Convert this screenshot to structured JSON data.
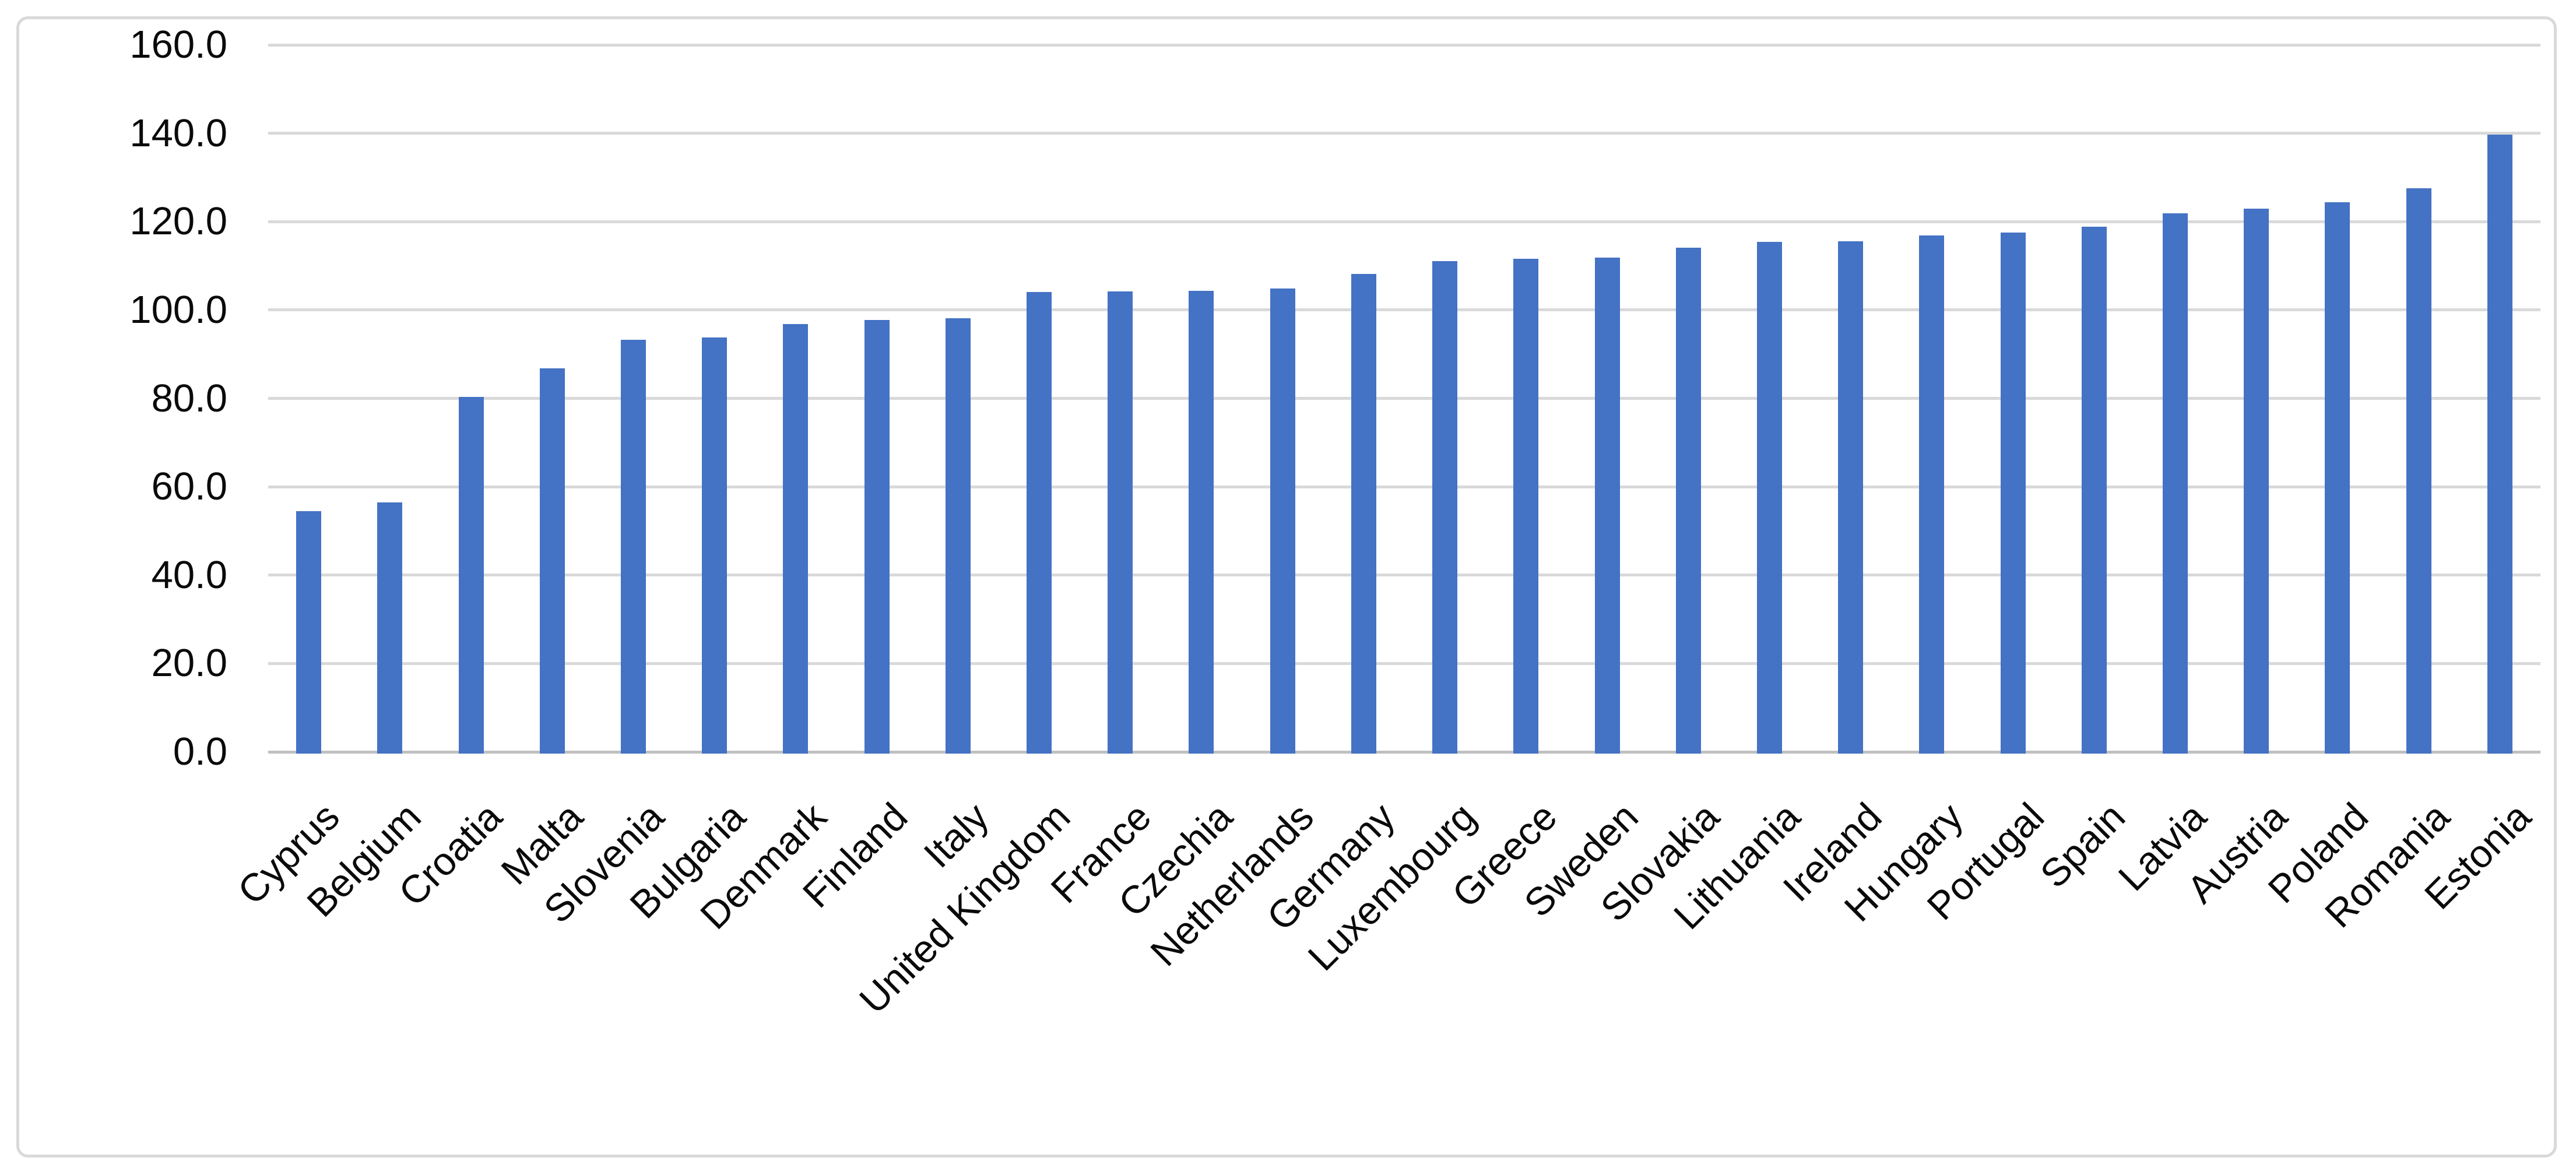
{
  "chart_data": {
    "type": "bar",
    "title": "",
    "xlabel": "",
    "ylabel": "",
    "categories": [
      "Cyprus",
      "Belgium",
      "Croatia",
      "Malta",
      "Slovenia",
      "Bulgaria",
      "Denmark",
      "Finland",
      "Italy",
      "United Kingdom",
      "France",
      "Czechia",
      "Netherlands",
      "Germany",
      "Luxembourg",
      "Greece",
      "Sweden",
      "Slovakia",
      "Lithuania",
      "Ireland",
      "Hungary",
      "Portugal",
      "Spain",
      "Latvia",
      "Austria",
      "Poland",
      "Romania",
      "Estonia"
    ],
    "values": [
      54.5,
      56.4,
      80.3,
      86.8,
      93.2,
      93.8,
      96.8,
      97.7,
      98.1,
      104.1,
      104.2,
      104.4,
      104.8,
      108.1,
      111.0,
      111.6,
      111.8,
      114.1,
      115.4,
      115.6,
      116.9,
      117.5,
      118.9,
      121.9,
      123.0,
      124.4,
      127.6,
      139.7
    ],
    "ylim": [
      0,
      160
    ],
    "ytick_step": 20,
    "ytick_labels": [
      "0.0",
      "20.0",
      "40.0",
      "60.0",
      "80.0",
      "100.0",
      "120.0",
      "140.0",
      "160.0"
    ],
    "grid": true,
    "legend": "none",
    "x_tick_rotation_deg": 45,
    "colors": {
      "bar": "#4472C4",
      "gridline": "#D9D9D9",
      "axis_line": "#C0C0C0",
      "frame_border": "#D9D9D9",
      "label_text": "#0A0A0A",
      "background": "#FFFFFF"
    }
  }
}
